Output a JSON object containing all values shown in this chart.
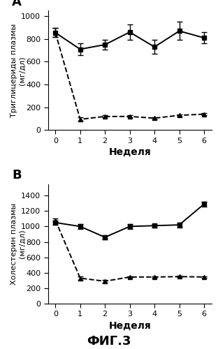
{
  "panel_A": {
    "title": "A",
    "ylabel_line1": "Триглицериды плазмы",
    "ylabel_line2": "(мг/дл)",
    "xlabel": "Неделя",
    "ylim": [
      0,
      1050
    ],
    "yticks": [
      0,
      200,
      400,
      600,
      800,
      1000
    ],
    "ytick_labels": [
      "0",
      "200",
      "400",
      "600",
      "800",
      "1000"
    ],
    "xlim": [
      -0.3,
      6.3
    ],
    "xticks": [
      0,
      1,
      2,
      3,
      4,
      5,
      6
    ],
    "solid_y": [
      855,
      710,
      750,
      860,
      730,
      870,
      810
    ],
    "solid_yerr": [
      40,
      55,
      40,
      70,
      60,
      80,
      50
    ],
    "dashed_y": [
      855,
      95,
      120,
      120,
      105,
      130,
      140
    ],
    "dashed_yerr": [
      40,
      15,
      10,
      10,
      8,
      10,
      10
    ]
  },
  "panel_B": {
    "title": "B",
    "ylabel_line1": "Холестерин плазмы",
    "ylabel_line2": "(мг/дл)",
    "xlabel": "Неделя",
    "ylim": [
      0,
      1550
    ],
    "yticks": [
      0,
      200,
      400,
      600,
      800,
      1000,
      1200,
      1400
    ],
    "ytick_labels": [
      "0",
      "200",
      "400",
      "600",
      "800",
      "1000",
      "1200",
      "1400"
    ],
    "xlim": [
      -0.3,
      6.3
    ],
    "xticks": [
      0,
      1,
      2,
      3,
      4,
      5,
      6
    ],
    "solid_y": [
      1050,
      1000,
      860,
      1000,
      1010,
      1020,
      1290
    ],
    "solid_yerr": [
      30,
      30,
      25,
      30,
      25,
      30,
      30
    ],
    "dashed_y": [
      1080,
      330,
      290,
      345,
      345,
      350,
      345
    ],
    "dashed_yerr": [
      25,
      20,
      15,
      10,
      10,
      10,
      10
    ]
  },
  "x_vals": [
    0,
    1,
    2,
    3,
    4,
    5,
    6
  ],
  "fig_label": "ФИГ.3",
  "line_color": "#000000",
  "marker_solid": "s",
  "marker_dashed": "^",
  "markersize": 5,
  "linewidth": 1.4,
  "capsize": 3,
  "elinewidth": 1.0,
  "tick_fontsize": 8,
  "xlabel_fontsize": 10,
  "ylabel_fontsize": 8,
  "title_fontsize": 13,
  "figlabel_fontsize": 13
}
